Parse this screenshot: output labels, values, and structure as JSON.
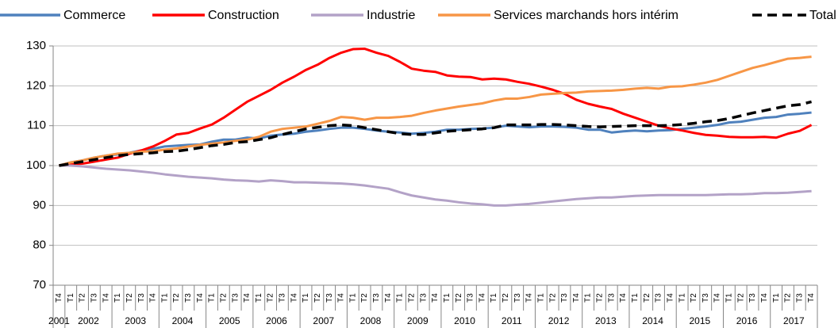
{
  "chart_data": {
    "type": "line",
    "categories": [
      "T4",
      "T1",
      "T2",
      "T3",
      "T4",
      "T1",
      "T2",
      "T3",
      "T4",
      "T1",
      "T2",
      "T3",
      "T4",
      "T1",
      "T2",
      "T3",
      "T4",
      "T1",
      "T2",
      "T3",
      "T4",
      "T1",
      "T2",
      "T3",
      "T4",
      "T1",
      "T2",
      "T3",
      "T4",
      "T1",
      "T2",
      "T3",
      "T4",
      "T1",
      "T2",
      "T3",
      "T4",
      "T1",
      "T2",
      "T3",
      "T4",
      "T1",
      "T2",
      "T3",
      "T4",
      "T1",
      "T2",
      "T3",
      "T4",
      "T1",
      "T2",
      "T3",
      "T4",
      "T1",
      "T2",
      "T3",
      "T4",
      "T1",
      "T2",
      "T3",
      "T4",
      "T1",
      "T2",
      "T3",
      "T4"
    ],
    "years": [
      "2001",
      "2002",
      "2003",
      "2004",
      "2005",
      "2006",
      "2007",
      "2008",
      "2009",
      "2010",
      "2011",
      "2012",
      "2013",
      "2014",
      "2015",
      "2016",
      "2017"
    ],
    "ylim": [
      70,
      130
    ],
    "yticks": [
      70,
      80,
      90,
      100,
      110,
      120,
      130
    ],
    "grid": true,
    "legend": "top",
    "series": [
      {
        "name": "Commerce",
        "color": "#4f81bd",
        "values": [
          100,
          100.8,
          101.3,
          102,
          102.5,
          102.8,
          103.2,
          103.8,
          104.2,
          104.8,
          105,
          105.2,
          105.3,
          106,
          106.5,
          106.5,
          107,
          106.8,
          107.5,
          107.8,
          108,
          108.5,
          108.8,
          109.2,
          109.5,
          109.5,
          109.2,
          108.8,
          108.5,
          108.3,
          108,
          108.2,
          108.5,
          109,
          109,
          109.2,
          109.3,
          109.5,
          110,
          109.8,
          109.6,
          109.8,
          109.8,
          109.7,
          109.5,
          109,
          109,
          108.3,
          108.6,
          108.8,
          108.6,
          108.8,
          108.9,
          109.2,
          109.5,
          109.8,
          110.2,
          110.8,
          111,
          111.5,
          112,
          112.2,
          112.8,
          113,
          113.3
        ]
      },
      {
        "name": "Construction",
        "color": "#ff0000",
        "values": [
          100,
          100.3,
          100.5,
          101,
          101.5,
          102,
          103,
          103.8,
          104.8,
          106.2,
          107.8,
          108.2,
          109.3,
          110.3,
          112,
          114,
          116,
          117.5,
          119,
          120.8,
          122.3,
          124,
          125.3,
          127,
          128.3,
          129.2,
          129.3,
          128.3,
          127.5,
          126,
          124.3,
          123.8,
          123.5,
          122.6,
          122.3,
          122.2,
          121.6,
          121.8,
          121.6,
          121,
          120.5,
          119.8,
          119,
          118,
          116.5,
          115.5,
          114.8,
          114.2,
          113,
          112,
          111,
          110,
          109.3,
          108.8,
          108.2,
          107.7,
          107.5,
          107.2,
          107.1,
          107.1,
          107.2,
          107,
          108,
          108.7,
          110.2
        ]
      },
      {
        "name": "Industrie",
        "color": "#b3a2c7",
        "values": [
          100,
          100,
          99.8,
          99.5,
          99.2,
          99,
          98.8,
          98.5,
          98.2,
          97.8,
          97.5,
          97.2,
          97,
          96.8,
          96.5,
          96.3,
          96.2,
          96,
          96.3,
          96.1,
          95.8,
          95.8,
          95.7,
          95.6,
          95.5,
          95.3,
          95,
          94.6,
          94.2,
          93.3,
          92.5,
          92,
          91.5,
          91.2,
          90.8,
          90.5,
          90.3,
          90,
          90,
          90.2,
          90.4,
          90.7,
          91,
          91.3,
          91.6,
          91.8,
          92,
          92,
          92.2,
          92.4,
          92.5,
          92.6,
          92.6,
          92.6,
          92.6,
          92.6,
          92.7,
          92.8,
          92.8,
          92.9,
          93.1,
          93.1,
          93.2,
          93.4,
          93.6
        ]
      },
      {
        "name": "Services marchands hors intérim",
        "color": "#f79646",
        "values": [
          100,
          100.8,
          101.3,
          102,
          102.5,
          103,
          103.2,
          103.5,
          103.6,
          104,
          104.3,
          104.8,
          105.2,
          105.5,
          105.8,
          106.2,
          106.5,
          107.2,
          108.5,
          109.2,
          109.5,
          109.8,
          110.5,
          111.2,
          112.2,
          112,
          111.5,
          112,
          112,
          112.2,
          112.5,
          113.2,
          113.8,
          114.3,
          114.8,
          115.2,
          115.6,
          116.3,
          116.8,
          116.8,
          117.2,
          117.8,
          118,
          118.2,
          118.3,
          118.6,
          118.7,
          118.8,
          119,
          119.3,
          119.5,
          119.3,
          119.8,
          119.9,
          120.3,
          120.8,
          121.5,
          122.5,
          123.5,
          124.5,
          125.2,
          126,
          126.8,
          127,
          127.3
        ]
      },
      {
        "name": "Total",
        "color": "#000000",
        "dashed": true,
        "values": [
          100,
          100.5,
          101,
          101.5,
          102,
          102.5,
          102.8,
          103,
          103.2,
          103.5,
          103.6,
          104,
          104.5,
          105,
          105.3,
          105.8,
          106,
          106.5,
          107,
          107.8,
          108.5,
          109.2,
          109.6,
          110,
          110.2,
          110,
          109.5,
          109,
          108.5,
          108,
          107.8,
          107.8,
          108.2,
          108.6,
          108.8,
          109,
          109.2,
          109.5,
          110.2,
          110.2,
          110.2,
          110.3,
          110.3,
          110.2,
          110,
          109.8,
          109.7,
          109.8,
          109.9,
          110,
          110,
          110,
          110.1,
          110.3,
          110.6,
          111,
          111.3,
          111.8,
          112.5,
          113.2,
          113.8,
          114.4,
          115,
          115.3,
          116
        ]
      }
    ]
  }
}
